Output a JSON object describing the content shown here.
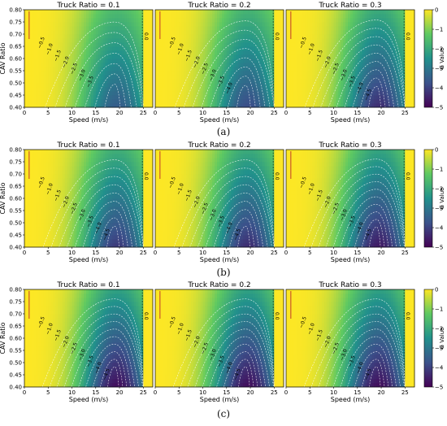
{
  "chart_data": {
    "type": "heatmap",
    "colormap": [
      "#440154",
      "#3b528b",
      "#21918c",
      "#5ec962",
      "#fde725"
    ],
    "column_titles": [
      "Truck Ratio = 0.1",
      "Truck Ratio = 0.2",
      "Truck Ratio = 0.3"
    ],
    "xlabel": "Speed (m/s)",
    "ylabel": "CAV Ratio",
    "x_ticks": [
      0,
      5,
      10,
      15,
      20,
      25
    ],
    "y_ticks": [
      "0.40",
      "0.45",
      "0.50",
      "0.55",
      "0.60",
      "0.65",
      "0.70",
      "0.75",
      "0.80"
    ],
    "xlim": [
      0,
      27
    ],
    "ylim": [
      0.4,
      0.8
    ],
    "colorbar": {
      "label": "G Value",
      "ticks": [
        0,
        -1,
        -2,
        -3,
        -4,
        -5
      ],
      "range": [
        -5,
        0
      ]
    },
    "contour_levels": [
      "0.0",
      "−0.5",
      "−1.0",
      "−1.5",
      "−2.0",
      "−2.5",
      "−3.0",
      "−3.5",
      "−4.0",
      "−4.5"
    ],
    "rows": [
      {
        "caption": "(a)",
        "panels": [
          {
            "truck_ratio": 0.1,
            "min_g": -3.7
          },
          {
            "truck_ratio": 0.2,
            "min_g": -4.0
          },
          {
            "truck_ratio": 0.3,
            "min_g": -4.5
          }
        ]
      },
      {
        "caption": "(b)",
        "panels": [
          {
            "truck_ratio": 0.1,
            "min_g": -4.3
          },
          {
            "truck_ratio": 0.2,
            "min_g": -4.5
          },
          {
            "truck_ratio": 0.3,
            "min_g": -4.8
          }
        ]
      },
      {
        "caption": "(c)",
        "panels": [
          {
            "truck_ratio": 0.1,
            "min_g": -5.0
          },
          {
            "truck_ratio": 0.2,
            "min_g": -5.0
          },
          {
            "truck_ratio": 0.3,
            "min_g": -5.0
          }
        ]
      }
    ]
  }
}
